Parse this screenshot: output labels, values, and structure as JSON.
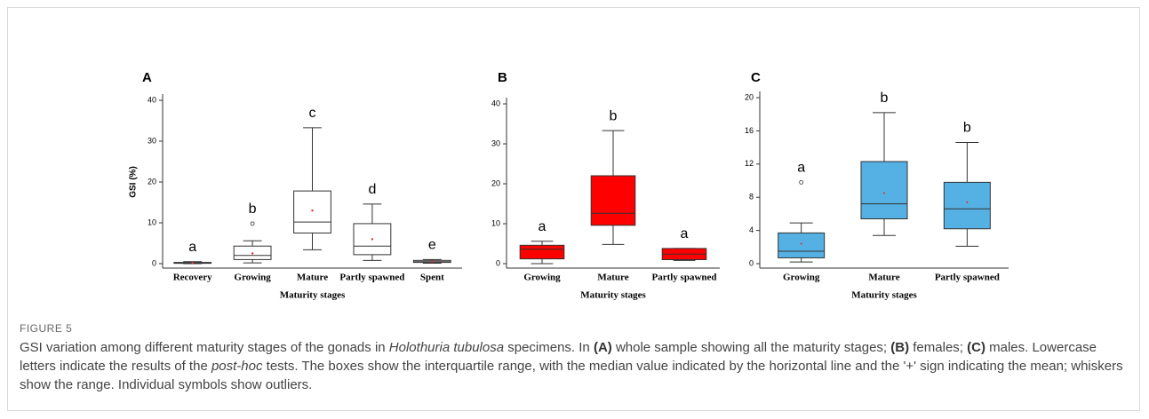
{
  "chart_data": [
    {
      "type": "box",
      "label": "A",
      "ylabel": "GSI (%)",
      "xlabel": "Maturity stages",
      "categories": [
        "Recovery",
        "Growing",
        "Mature",
        "Partly spawned",
        "Spent"
      ],
      "letters": [
        "a",
        "b",
        "c",
        "d",
        "e"
      ],
      "boxes": [
        {
          "min": 0,
          "q1": 0.1,
          "median": 0.2,
          "q3": 0.3,
          "max": 0.5,
          "mean": 0.2,
          "outliers": []
        },
        {
          "min": 0.2,
          "q1": 1.0,
          "median": 2.0,
          "q3": 4.3,
          "max": 5.6,
          "mean": 2.5,
          "outliers": [
            9.8
          ]
        },
        {
          "min": 3.4,
          "q1": 7.5,
          "median": 10.2,
          "q3": 17.8,
          "max": 33.3,
          "mean": 13.0,
          "outliers": []
        },
        {
          "min": 0.8,
          "q1": 2.2,
          "median": 4.3,
          "q3": 9.8,
          "max": 14.6,
          "mean": 6.0,
          "outliers": []
        },
        {
          "min": 0.1,
          "q1": 0.3,
          "median": 0.5,
          "q3": 0.8,
          "max": 1.0,
          "mean": 0.5,
          "outliers": []
        }
      ],
      "color": "#ffffff",
      "mean_color": "#e03030",
      "ylim": [
        0,
        40
      ],
      "yticks": [
        0,
        10,
        20,
        30,
        40
      ]
    },
    {
      "type": "box",
      "label": "B",
      "xlabel": "Maturity stages",
      "categories": [
        "Growing",
        "Mature",
        "Partly spawned"
      ],
      "letters": [
        "a",
        "b",
        "a"
      ],
      "boxes": [
        {
          "min": 0,
          "q1": 1.2,
          "median": 3.6,
          "q3": 4.6,
          "max": 5.6,
          "outliers": []
        },
        {
          "min": 4.8,
          "q1": 9.6,
          "median": 12.6,
          "q3": 22.0,
          "max": 33.3,
          "outliers": []
        },
        {
          "min": 0.8,
          "q1": 1.0,
          "median": 2.4,
          "q3": 3.8,
          "max": 3.8,
          "outliers": []
        }
      ],
      "color": "#ff0000",
      "ylim": [
        0,
        40
      ],
      "yticks": [
        0,
        10,
        20,
        30,
        40
      ]
    },
    {
      "type": "box",
      "label": "C",
      "xlabel": "Maturity stages",
      "categories": [
        "Growing",
        "Mature",
        "Partly spawned"
      ],
      "letters": [
        "a",
        "b",
        "b"
      ],
      "boxes": [
        {
          "min": 0.2,
          "q1": 0.7,
          "median": 1.5,
          "q3": 3.7,
          "max": 4.9,
          "mean": 2.4,
          "outliers": [
            9.8
          ]
        },
        {
          "min": 3.4,
          "q1": 5.4,
          "median": 7.2,
          "q3": 12.3,
          "max": 18.2,
          "mean": 8.5,
          "outliers": []
        },
        {
          "min": 2.1,
          "q1": 4.2,
          "median": 6.6,
          "q3": 9.8,
          "max": 14.6,
          "mean": 7.4,
          "outliers": []
        }
      ],
      "color": "#55b1e3",
      "mean_color": "#c0504d",
      "ylim": [
        0,
        20
      ],
      "yticks": [
        0,
        4,
        8,
        12,
        16,
        20
      ]
    }
  ],
  "figure_label": "FIGURE 5",
  "caption": [
    "GSI variation among different maturity stages of the gonads in ",
    "Holothuria tubulosa",
    " specimens. In ",
    "(A)",
    " whole sample showing all the maturity stages; ",
    "(B)",
    " females; ",
    "(C)",
    " males. Lowercase letters indicate the results of the ",
    "post-hoc",
    " tests. The boxes show the interquartile range, with the median value indicated by the horizontal line and the '+' sign indicating the mean; whiskers show the range. Individual symbols show outliers."
  ]
}
